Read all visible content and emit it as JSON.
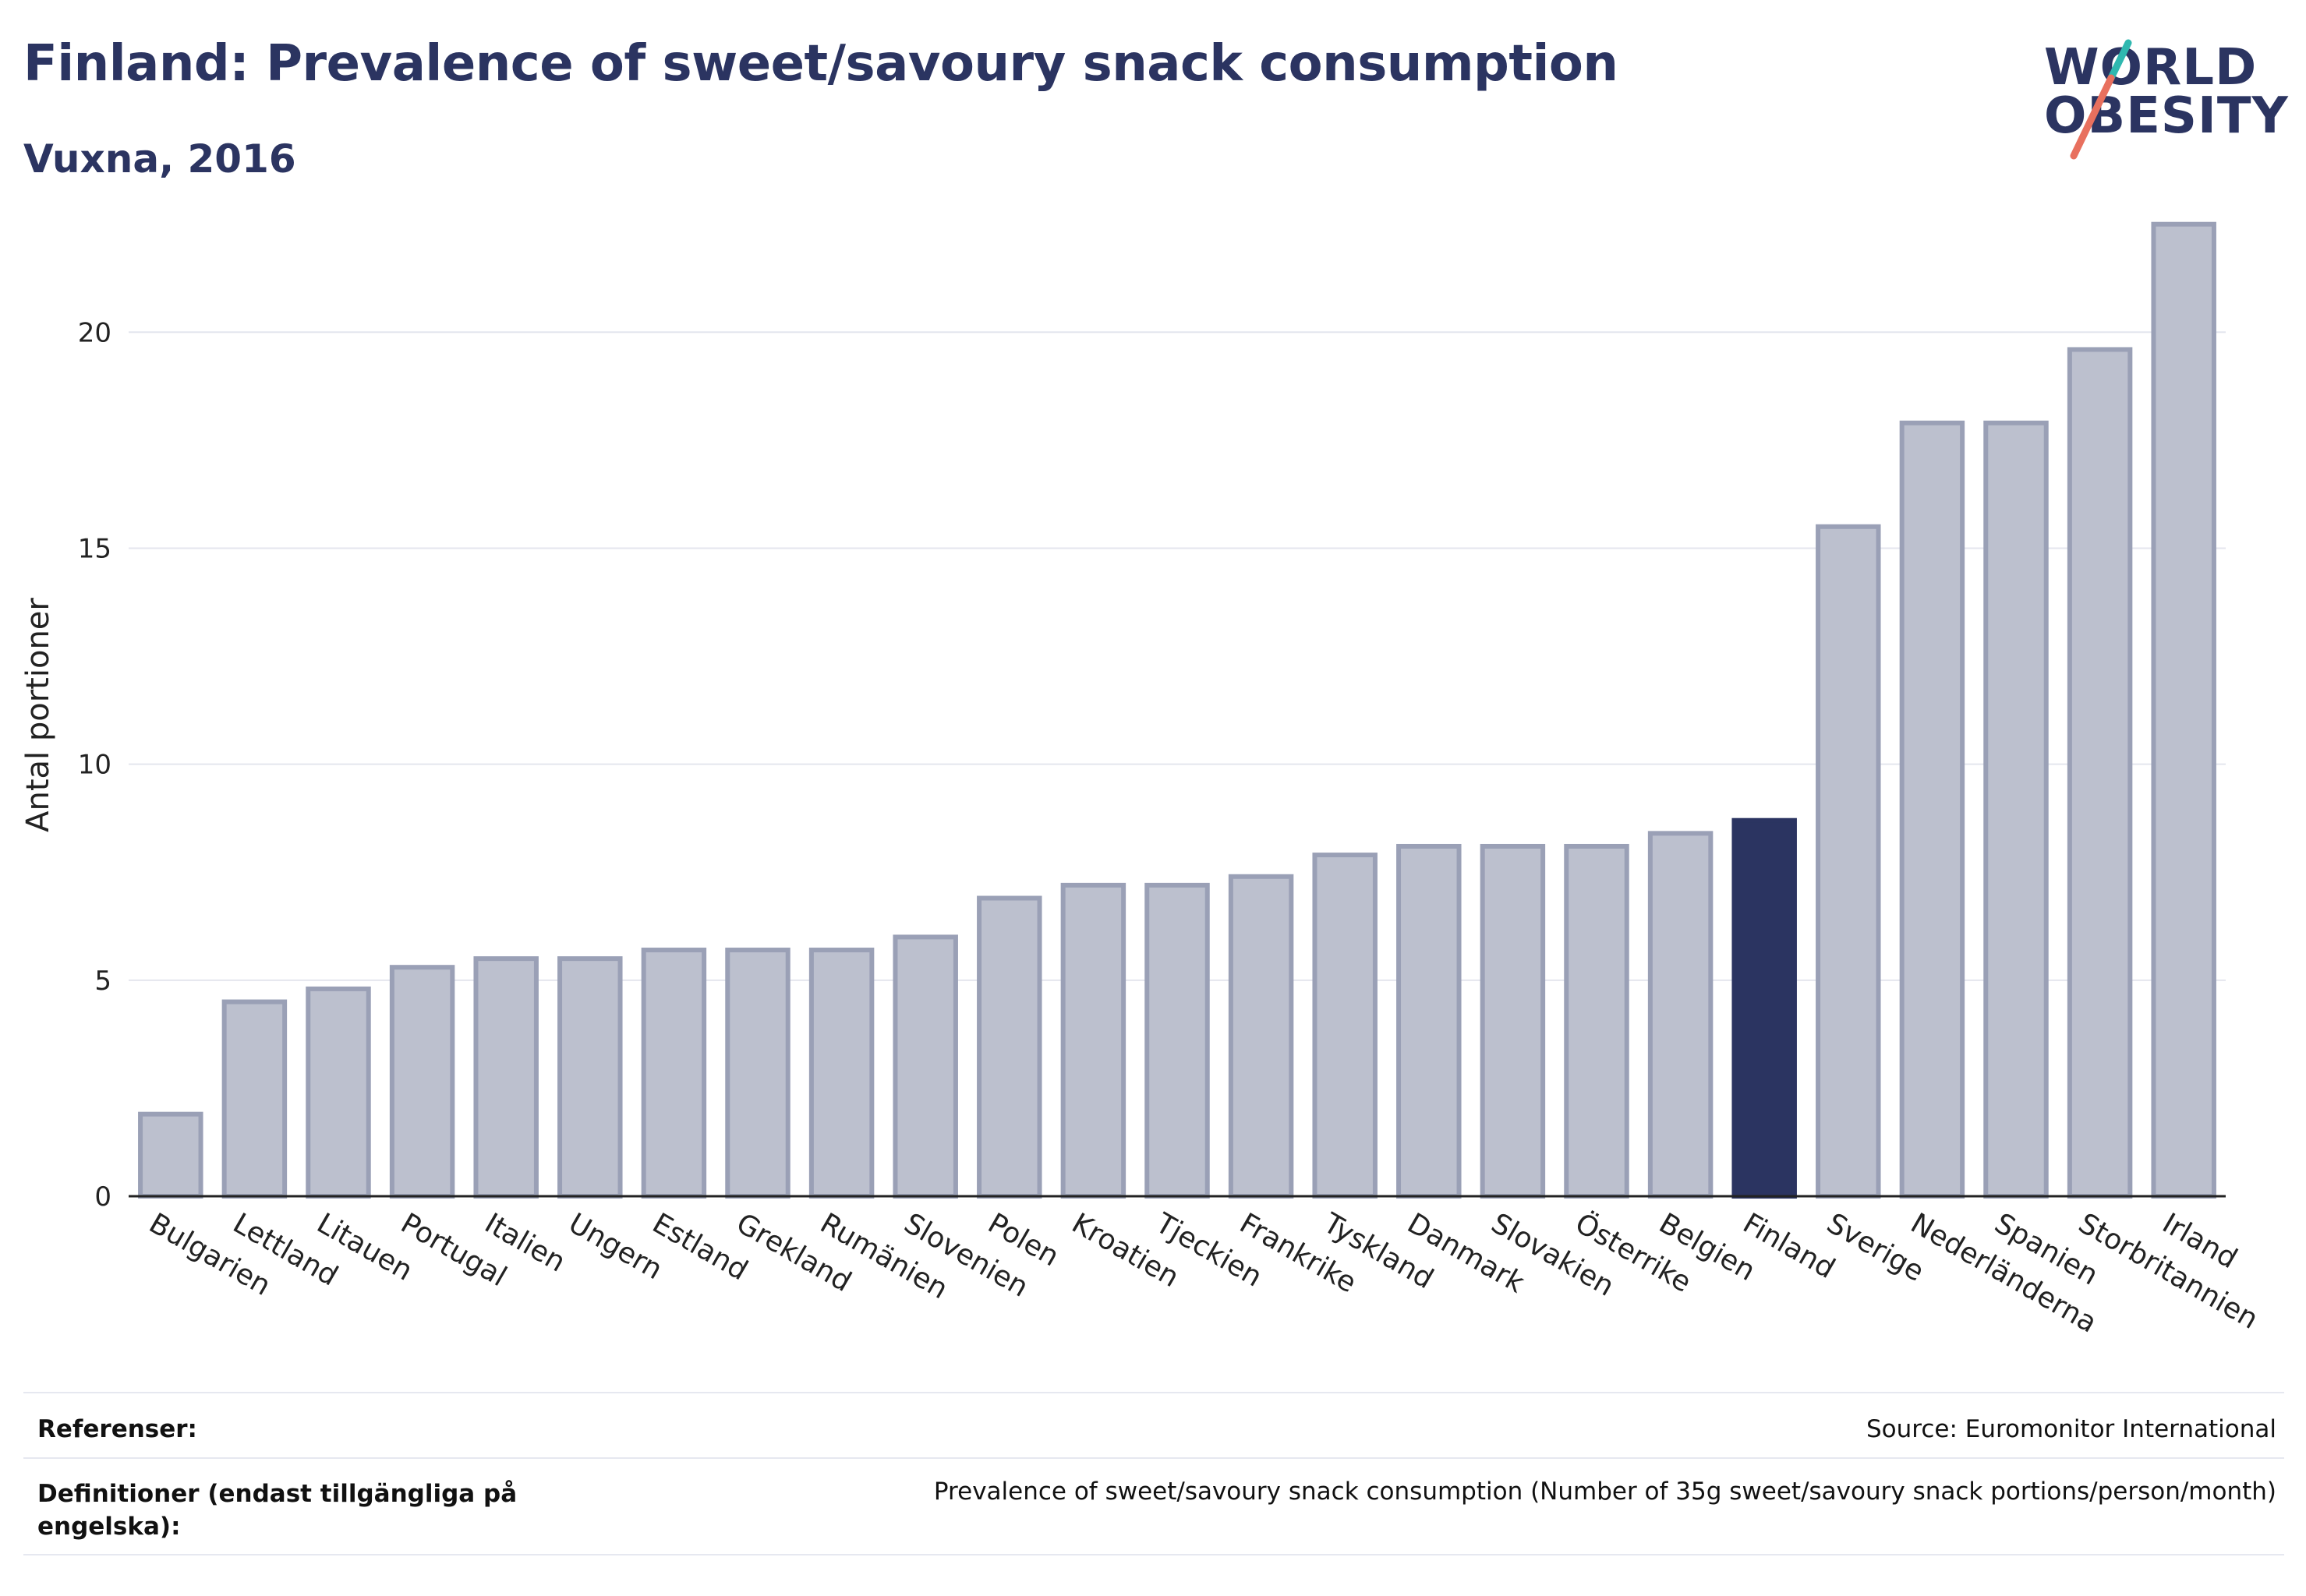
{
  "header": {
    "title": "Finland: Prevalence of sweet/savoury snack consumption",
    "subtitle": "Vuxna, 2016"
  },
  "logo": {
    "line1": "WORLD",
    "line2": "OBESITY",
    "colors": {
      "teal": "#2fb8b0",
      "coral": "#e8705e"
    }
  },
  "chart_data": {
    "type": "bar",
    "ylabel": "Antal portioner",
    "xlabel": "",
    "ylim": [
      0,
      23
    ],
    "yticks": [
      0,
      5,
      10,
      15,
      20
    ],
    "grid": true,
    "highlight": "Finland",
    "colors": {
      "bar": "#bcc0ce",
      "bar_edge": "#9aa0b6",
      "highlight": "#2b3461"
    },
    "categories": [
      "Bulgarien",
      "Lettland",
      "Litauen",
      "Portugal",
      "Italien",
      "Ungern",
      "Estland",
      "Grekland",
      "Rumänien",
      "Slovenien",
      "Polen",
      "Kroatien",
      "Tjeckien",
      "Frankrike",
      "Tyskland",
      "Danmark",
      "Slovakien",
      "Österrike",
      "Belgien",
      "Finland",
      "Sverige",
      "Nederländerna",
      "Spanien",
      "Storbritannien",
      "Irland"
    ],
    "values": [
      1.9,
      4.5,
      4.8,
      5.3,
      5.5,
      5.5,
      5.7,
      5.7,
      5.7,
      6.0,
      6.9,
      7.2,
      7.2,
      7.4,
      7.9,
      8.1,
      8.1,
      8.1,
      8.4,
      8.7,
      15.5,
      17.9,
      17.9,
      19.6,
      22.5
    ]
  },
  "footer": {
    "references_label": "Referenser:",
    "references_value": "Source: Euromonitor International",
    "definitions_label": "Definitioner (endast tillgängliga på engelska):",
    "definitions_value": "Prevalence of sweet/savoury snack consumption (Number of 35g sweet/savoury snack portions/person/month)"
  }
}
